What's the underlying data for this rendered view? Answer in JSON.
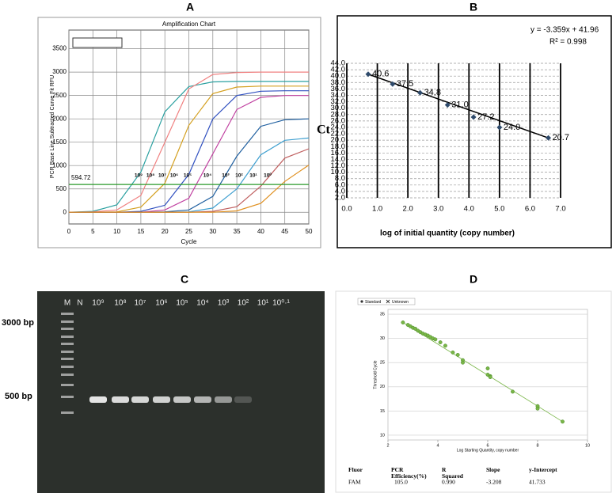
{
  "panel_labels": [
    "A",
    "B",
    "C",
    "D"
  ],
  "chart_data": [
    {
      "type": "line",
      "title": "Amplification Chart",
      "x_label": "Cycle",
      "y_label": "PCR Base Line Subtracted Curve Fit RFU",
      "x": [
        0,
        5,
        10,
        15,
        20,
        25,
        30,
        35,
        40,
        45,
        50
      ],
      "series": [
        {
          "color": "#2aa0a0",
          "values": [
            0,
            20,
            160,
            860,
            2150,
            2690,
            2790,
            2800,
            2800,
            2800,
            2800
          ]
        },
        {
          "color": "#f08080",
          "values": [
            0,
            10,
            50,
            360,
            1500,
            2640,
            2950,
            2990,
            3000,
            3000,
            3000
          ]
        },
        {
          "color": "#d4a020",
          "values": [
            0,
            0,
            10,
            110,
            620,
            1860,
            2540,
            2680,
            2700,
            2700,
            2700
          ]
        },
        {
          "color": "#3050c0",
          "values": [
            0,
            0,
            0,
            20,
            150,
            810,
            2000,
            2500,
            2590,
            2600,
            2600
          ]
        },
        {
          "color": "#c040a0",
          "values": [
            0,
            0,
            0,
            0,
            50,
            300,
            1250,
            2200,
            2460,
            2500,
            2500
          ]
        },
        {
          "color": "#2060a0",
          "values": [
            0,
            0,
            0,
            0,
            10,
            50,
            340,
            1200,
            1840,
            1980,
            2000
          ]
        },
        {
          "color": "#40a0d0",
          "values": [
            0,
            0,
            0,
            0,
            0,
            10,
            90,
            500,
            1230,
            1540,
            1590
          ]
        },
        {
          "color": "#c06060",
          "values": [
            0,
            0,
            0,
            0,
            0,
            0,
            20,
            120,
            560,
            1160,
            1360
          ]
        },
        {
          "color": "#e09020",
          "values": [
            0,
            0,
            0,
            0,
            0,
            0,
            0,
            30,
            190,
            660,
            1010
          ]
        }
      ],
      "threshold": 594.72,
      "annotations": [
        "10⁹",
        "10⁸",
        "10⁷",
        "10⁶",
        "10⁵",
        "10⁴",
        "10³",
        "10²",
        "10¹",
        "10⁰"
      ],
      "xlim": [
        0,
        50
      ],
      "xticks": [
        0,
        5,
        10,
        15,
        20,
        25,
        30,
        35,
        40,
        45,
        50
      ],
      "ylim": [
        -250,
        3900
      ],
      "yticks": [
        0,
        500,
        1000,
        1500,
        2000,
        2500,
        3000,
        3500
      ],
      "grid": true
    },
    {
      "type": "scatter",
      "equation": "y = -3.359x + 41.96",
      "r_squared": "R² = 0.998",
      "x_label": "log of initial quantity (copy number)",
      "y_label": "Ct",
      "x": [
        0.7,
        1.5,
        2.4,
        3.3,
        4.15,
        5.0,
        6.6
      ],
      "values": [
        40.6,
        37.5,
        34.8,
        31.0,
        27.2,
        24.0,
        20.7
      ],
      "value_labels": [
        "40.6",
        "37.5",
        "34.8",
        "31.0",
        "27.2",
        "24.0",
        "20.7"
      ],
      "color": "#2e4a6b",
      "xlim": [
        0,
        7
      ],
      "xticks": [
        {
          "value": 0,
          "label": "0.0"
        },
        {
          "value": 1,
          "label": "1.0"
        },
        {
          "value": 2,
          "label": "2.0"
        },
        {
          "value": 3,
          "label": "3.0"
        },
        {
          "value": 4,
          "label": "4.0"
        },
        {
          "value": 5,
          "label": "5.0"
        },
        {
          "value": 6,
          "label": "6.0"
        },
        {
          "value": 7,
          "label": "7.0"
        }
      ],
      "ylim": [
        2,
        44
      ],
      "yticks": [
        {
          "value": 2,
          "label": "2.0"
        },
        {
          "value": 4,
          "label": "4.0"
        },
        {
          "value": 6,
          "label": "6.0"
        },
        {
          "value": 8,
          "label": "8.0"
        },
        {
          "value": 10,
          "label": "10.0"
        },
        {
          "value": 12,
          "label": "12.0"
        },
        {
          "value": 14,
          "label": "14.0"
        },
        {
          "value": 16,
          "label": "16.0"
        },
        {
          "value": 18,
          "label": "18.0"
        },
        {
          "value": 20,
          "label": "20.0"
        },
        {
          "value": 22,
          "label": "22.0"
        },
        {
          "value": 24,
          "label": "24.0"
        },
        {
          "value": 26,
          "label": "26.0"
        },
        {
          "value": 28,
          "label": "28.0"
        },
        {
          "value": 30,
          "label": "30.0"
        },
        {
          "value": 32,
          "label": "32.0"
        },
        {
          "value": 34,
          "label": "34.0"
        },
        {
          "value": 36,
          "label": "36.0"
        },
        {
          "value": 38,
          "label": "38.0"
        },
        {
          "value": 40,
          "label": "40.0"
        },
        {
          "value": 42,
          "label": "42.0"
        },
        {
          "value": 44,
          "label": "44.0"
        }
      ],
      "grid": true
    },
    {
      "type": "scatter",
      "legend_entries": [
        "Standard",
        "Unknown"
      ],
      "x_label": "Log Starting Quantity, copy number",
      "y_label": "Threshold Cycle",
      "x": [
        2.6,
        2.8,
        2.9,
        3.0,
        3.1,
        3.2,
        3.3,
        3.4,
        3.5,
        3.6,
        3.7,
        3.8,
        3.9,
        4.1,
        4.3,
        4.6,
        4.8,
        5.0,
        5.0,
        6.0,
        6.0,
        6.1,
        6.1,
        7.0,
        8.0,
        8.0,
        9.0
      ],
      "values": [
        33.3,
        32.8,
        32.5,
        32.2,
        32.0,
        31.6,
        31.3,
        31.0,
        30.8,
        30.6,
        30.3,
        30.0,
        29.8,
        29.2,
        28.5,
        27.1,
        26.6,
        25.5,
        25.0,
        23.8,
        22.5,
        22.2,
        22.0,
        19.0,
        16.0,
        15.5,
        12.8
      ],
      "color": "#7ab648",
      "xlim": [
        2,
        10
      ],
      "xticks": [
        2,
        4,
        6,
        8,
        10
      ],
      "ylim": [
        9,
        36
      ],
      "yticks": [
        10,
        15,
        20,
        25,
        30,
        35
      ],
      "grid": true
    }
  ],
  "gel": {
    "lanes": [
      "M",
      "N",
      "10⁹",
      "10⁸",
      "10⁷",
      "10⁶",
      "10⁵",
      "10⁴",
      "10³",
      "10²",
      "10¹",
      "10⁰·¹"
    ],
    "size_markers": [
      "3000 bp",
      "500 bp"
    ]
  },
  "table": {
    "headers": [
      "Fluor",
      "PCR Efficiency(%)",
      "R Squared",
      "Slope",
      "y-Intercept"
    ],
    "rows": [
      [
        "FAM",
        "105.0",
        "0.990",
        "-3.208",
        "41.733"
      ]
    ]
  }
}
